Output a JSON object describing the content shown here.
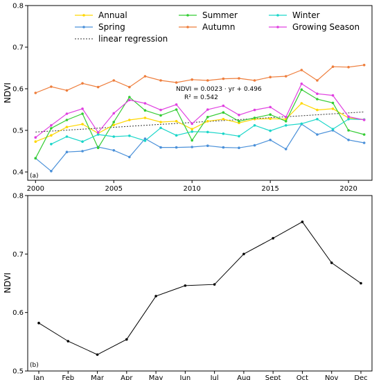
{
  "chart_data": [
    {
      "type": "line",
      "panel_label": "(a)",
      "xlim": [
        1999.5,
        2021.5
      ],
      "ylim": [
        0.38,
        0.8
      ],
      "ylabel": "NDVI",
      "xticks": [
        2000,
        2005,
        2010,
        2015,
        2020
      ],
      "yticks": [
        0.4,
        0.5,
        0.6,
        0.7,
        0.8
      ],
      "grid": false,
      "legend_position": "top",
      "x": [
        2000,
        2001,
        2002,
        2003,
        2004,
        2005,
        2006,
        2007,
        2008,
        2009,
        2010,
        2011,
        2012,
        2013,
        2014,
        2015,
        2016,
        2017,
        2018,
        2019,
        2020,
        2021
      ],
      "series": [
        {
          "name": "Annual",
          "color": "#ffd700",
          "values": [
            0.473,
            0.488,
            0.508,
            0.515,
            0.493,
            0.513,
            0.525,
            0.53,
            0.52,
            0.522,
            0.503,
            0.522,
            0.527,
            0.518,
            0.527,
            0.528,
            0.527,
            0.565,
            0.549,
            0.552,
            0.53,
            0.526
          ]
        },
        {
          "name": "Spring",
          "color": "#4a90d9",
          "values": [
            0.433,
            0.402,
            0.448,
            0.45,
            0.46,
            0.452,
            0.436,
            0.48,
            0.459,
            0.459,
            0.46,
            0.463,
            0.459,
            0.458,
            0.464,
            0.477,
            0.455,
            0.515,
            0.49,
            0.5,
            0.477,
            0.47
          ]
        },
        {
          "name": "Summer",
          "color": "#33cc33",
          "values": [
            0.433,
            0.505,
            0.525,
            0.54,
            0.458,
            0.52,
            0.58,
            0.548,
            0.536,
            0.55,
            0.476,
            0.532,
            0.543,
            0.522,
            0.53,
            0.538,
            0.522,
            0.598,
            0.575,
            0.566,
            0.5,
            0.49
          ]
        },
        {
          "name": "Autumn",
          "color": "#ee7d3b",
          "values": [
            0.59,
            0.605,
            0.596,
            0.613,
            0.604,
            0.62,
            0.604,
            0.63,
            0.62,
            0.615,
            0.622,
            0.62,
            0.624,
            0.625,
            0.62,
            0.628,
            0.63,
            0.645,
            0.62,
            0.653,
            0.652,
            0.657
          ]
        },
        {
          "name": "Winter",
          "color": "#1ad6c9",
          "values": [
            null,
            0.467,
            0.485,
            0.473,
            0.49,
            0.485,
            0.487,
            0.475,
            0.506,
            0.488,
            0.497,
            0.496,
            0.492,
            0.486,
            0.512,
            0.499,
            0.512,
            0.516,
            0.527,
            0.503,
            0.527,
            0.526
          ]
        },
        {
          "name": "Growing Season",
          "color": "#e040e0",
          "values": [
            0.483,
            0.512,
            0.54,
            0.552,
            0.495,
            0.541,
            0.573,
            0.565,
            0.549,
            0.562,
            0.516,
            0.55,
            0.559,
            0.537,
            0.549,
            0.556,
            0.532,
            0.612,
            0.588,
            0.584,
            0.533,
            0.525
          ]
        }
      ],
      "regression": {
        "name": "linear regression",
        "slope": 0.0023,
        "intercept": 0.496,
        "start_year": 2000,
        "color": "#333333"
      },
      "annotation": {
        "line1": "NDVI = 0.0023 · yr + 0.496",
        "line2": "R² = 0.542"
      }
    },
    {
      "type": "line",
      "panel_label": "(b)",
      "ylim": [
        0.5,
        0.8
      ],
      "ylabel": "NDVI",
      "yticks": [
        0.5,
        0.6,
        0.7,
        0.8
      ],
      "grid": false,
      "categories": [
        "Jan",
        "Feb",
        "Mar",
        "Apr",
        "May",
        "Jun",
        "Jul",
        "Aug",
        "Sept",
        "Oct",
        "Nov",
        "Dec"
      ],
      "series": [
        {
          "color": "#000000",
          "values": [
            0.582,
            0.551,
            0.528,
            0.554,
            0.628,
            0.646,
            0.648,
            0.7,
            0.727,
            0.755,
            0.685,
            0.65
          ]
        }
      ]
    }
  ]
}
